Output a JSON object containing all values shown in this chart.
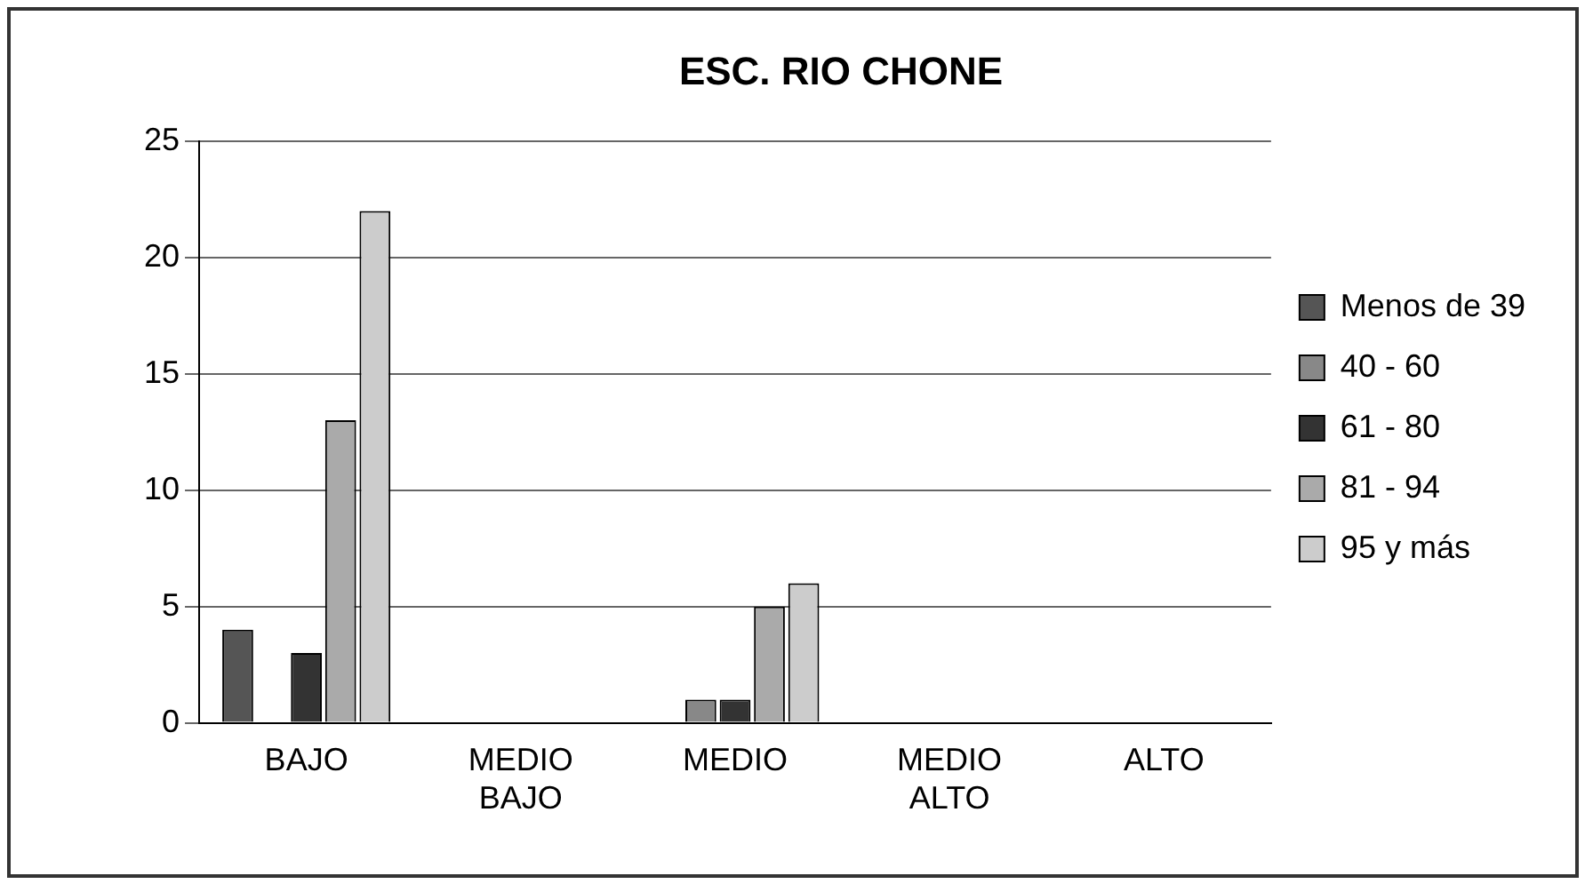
{
  "chart_data": {
    "type": "bar",
    "title": "ESC. RIO CHONE",
    "categories": [
      "BAJO",
      "MEDIO BAJO",
      "MEDIO",
      "MEDIO ALTO",
      "ALTO"
    ],
    "series": [
      {
        "name": "Menos de 39",
        "color": "#555555",
        "values": [
          4,
          0,
          0,
          0,
          0
        ]
      },
      {
        "name": "40 - 60",
        "color": "#888888",
        "values": [
          0,
          0,
          1,
          0,
          0
        ]
      },
      {
        "name": "61 - 80",
        "color": "#333333",
        "values": [
          3,
          0,
          1,
          0,
          0
        ]
      },
      {
        "name": "81 - 94",
        "color": "#aaaaaa",
        "values": [
          13,
          0,
          5,
          0,
          0
        ]
      },
      {
        "name": "95 y más",
        "color": "#cccccc",
        "values": [
          22,
          0,
          6,
          0,
          0
        ]
      }
    ],
    "ylim": [
      0,
      25
    ],
    "yticks": [
      0,
      5,
      10,
      15,
      20,
      25
    ],
    "grid": "y",
    "legend": "right"
  }
}
